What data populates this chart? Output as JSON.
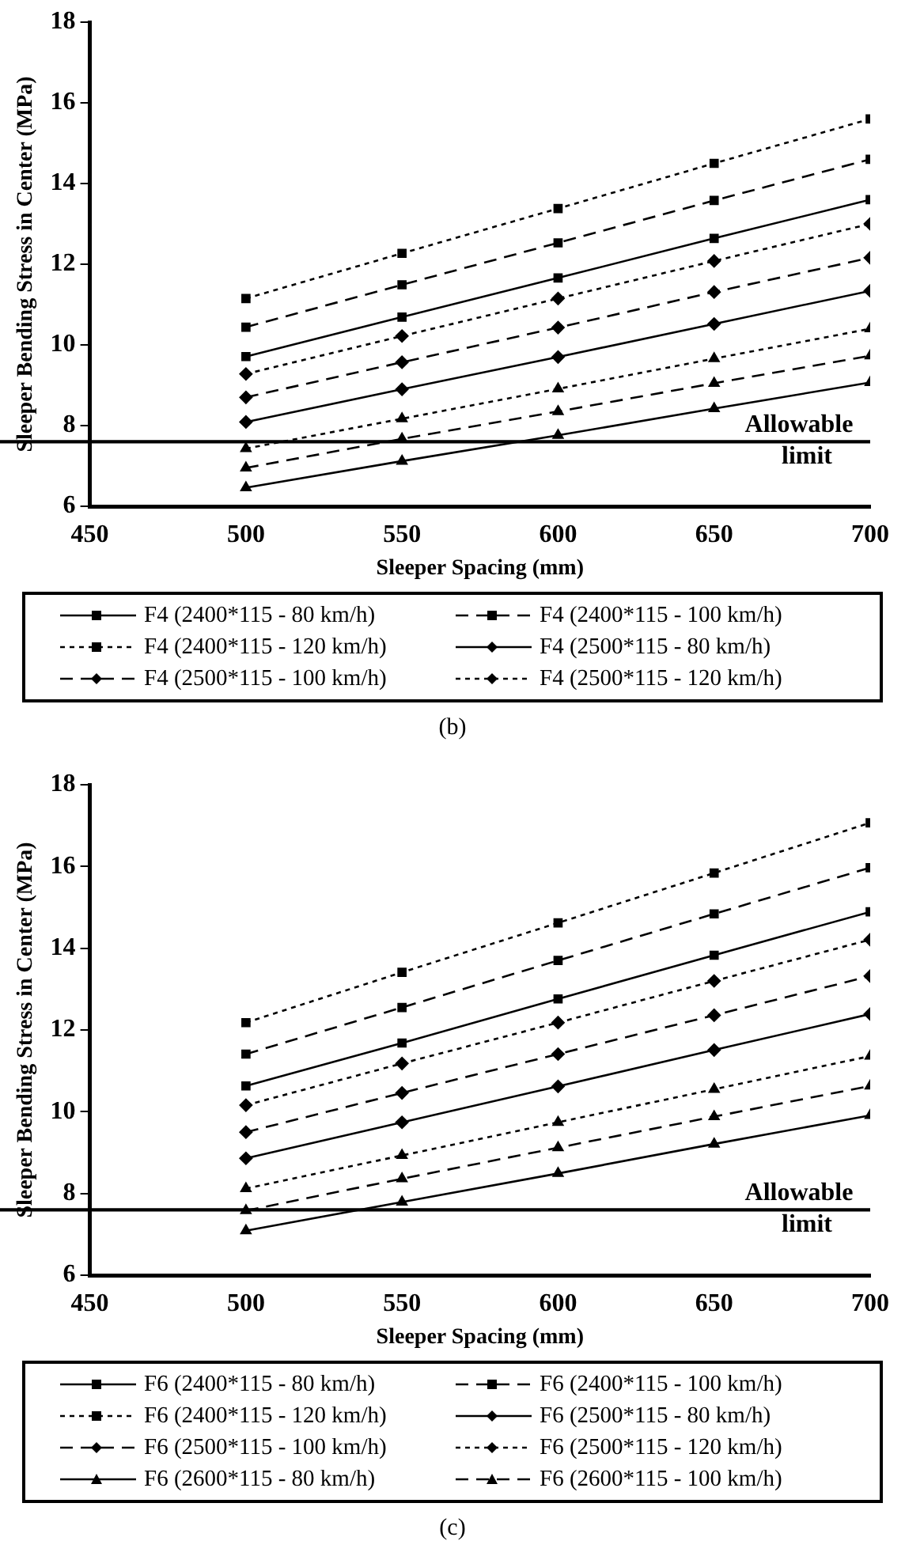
{
  "chart_data": [
    {
      "type": "line",
      "xlabel": "Sleeper Spacing (mm)",
      "ylabel": "Sleeper Bending Stress in Center (MPa)",
      "x": [
        500,
        550,
        600,
        650,
        700
      ],
      "xlim": [
        450,
        700
      ],
      "xticks": [
        450,
        500,
        550,
        600,
        650,
        700
      ],
      "ylim": [
        6,
        18
      ],
      "yticks": [
        6,
        8,
        10,
        12,
        14,
        16,
        18
      ],
      "grid": false,
      "legend": "bottom",
      "annotations": [
        "(b)"
      ],
      "ref_lines": [
        {
          "axis": "y",
          "value": 7.6,
          "label": "Allowable limit",
          "color": "#000000"
        }
      ],
      "series": [
        {
          "name": "F4 (2400*115 - 80 km/h)",
          "color": "#000000",
          "marker": "square",
          "line_style": "solid",
          "values": [
            9.71,
            10.69,
            11.66,
            12.64,
            13.6
          ]
        },
        {
          "name": "F4 (2400*115 - 100 km/h)",
          "color": "#000000",
          "marker": "square",
          "line_style": "dashed",
          "values": [
            10.44,
            11.49,
            12.53,
            13.58,
            14.6
          ]
        },
        {
          "name": "F4 (2400*115 - 120 km/h)",
          "color": "#000000",
          "marker": "square",
          "line_style": "dotted",
          "values": [
            11.15,
            12.27,
            13.38,
            14.5,
            15.6
          ]
        },
        {
          "name": "F4 (2500*115 - 80 km/h)",
          "color": "#000000",
          "marker": "diamond",
          "line_style": "solid",
          "values": [
            8.09,
            8.9,
            9.7,
            10.52,
            11.34
          ]
        },
        {
          "name": "F4 (2500*115 - 100 km/h)",
          "color": "#000000",
          "marker": "diamond",
          "line_style": "dashed",
          "values": [
            8.7,
            9.57,
            10.43,
            11.31,
            12.16
          ]
        },
        {
          "name": "F4 (2500*115 - 120 km/h)",
          "color": "#000000",
          "marker": "diamond",
          "line_style": "dotted",
          "values": [
            9.28,
            10.22,
            11.15,
            12.08,
            13.0
          ]
        },
        {
          "color": "#000000",
          "marker": "triangle",
          "line_style": "solid",
          "values": [
            6.46,
            7.12,
            7.76,
            8.42,
            9.07
          ]
        },
        {
          "color": "#000000",
          "marker": "triangle",
          "line_style": "dashed",
          "values": [
            6.95,
            7.67,
            8.35,
            9.05,
            9.73
          ]
        },
        {
          "color": "#000000",
          "marker": "triangle",
          "line_style": "dotted",
          "values": [
            7.43,
            8.17,
            8.91,
            9.66,
            10.4
          ]
        }
      ]
    },
    {
      "type": "line",
      "xlabel": "Sleeper Spacing (mm)",
      "ylabel": "Sleeper Bending Stress in Center (MPa)",
      "x": [
        500,
        550,
        600,
        650,
        700
      ],
      "xlim": [
        450,
        700
      ],
      "xticks": [
        450,
        500,
        550,
        600,
        650,
        700
      ],
      "ylim": [
        6,
        18
      ],
      "yticks": [
        6,
        8,
        10,
        12,
        14,
        16,
        18
      ],
      "grid": false,
      "legend": "bottom",
      "annotations": [
        "(c)"
      ],
      "ref_lines": [
        {
          "axis": "y",
          "value": 7.6,
          "label": "Allowable limit",
          "color": "#000000"
        }
      ],
      "series": [
        {
          "name": "F6 (2400*115 - 80 km/h)",
          "color": "#000000",
          "marker": "square",
          "line_style": "solid",
          "values": [
            10.63,
            11.68,
            12.76,
            13.83,
            14.89
          ]
        },
        {
          "name": "F6 (2400*115 - 100 km/h)",
          "color": "#000000",
          "marker": "square",
          "line_style": "dashed",
          "values": [
            11.41,
            12.55,
            13.7,
            14.84,
            15.97
          ]
        },
        {
          "name": "F6 (2400*115 - 120 km/h)",
          "color": "#000000",
          "marker": "square",
          "line_style": "dotted",
          "values": [
            12.18,
            13.41,
            14.62,
            15.84,
            17.07
          ]
        },
        {
          "name": "F6 (2500*115 - 80 km/h)",
          "color": "#000000",
          "marker": "diamond",
          "line_style": "solid",
          "values": [
            8.86,
            9.74,
            10.62,
            11.51,
            12.39
          ]
        },
        {
          "name": "F6 (2500*115 - 100 km/h)",
          "color": "#000000",
          "marker": "diamond",
          "line_style": "dashed",
          "values": [
            9.5,
            10.46,
            11.41,
            12.36,
            13.32
          ]
        },
        {
          "name": "F6 (2500*115 - 120 km/h)",
          "color": "#000000",
          "marker": "diamond",
          "line_style": "dotted",
          "values": [
            10.16,
            11.18,
            12.18,
            13.2,
            14.21
          ]
        },
        {
          "name": "F6 (2600*115 - 80 km/h)",
          "color": "#000000",
          "marker": "triangle",
          "line_style": "solid",
          "values": [
            7.09,
            7.79,
            8.49,
            9.21,
            9.91
          ]
        },
        {
          "name": "F6 (2600*115 - 100 km/h)",
          "color": "#000000",
          "marker": "triangle",
          "line_style": "dashed",
          "values": [
            7.58,
            8.36,
            9.12,
            9.88,
            10.63
          ]
        },
        {
          "color": "#000000",
          "marker": "triangle",
          "line_style": "dotted",
          "values": [
            8.12,
            8.93,
            9.74,
            10.55,
            11.36
          ]
        }
      ]
    }
  ]
}
